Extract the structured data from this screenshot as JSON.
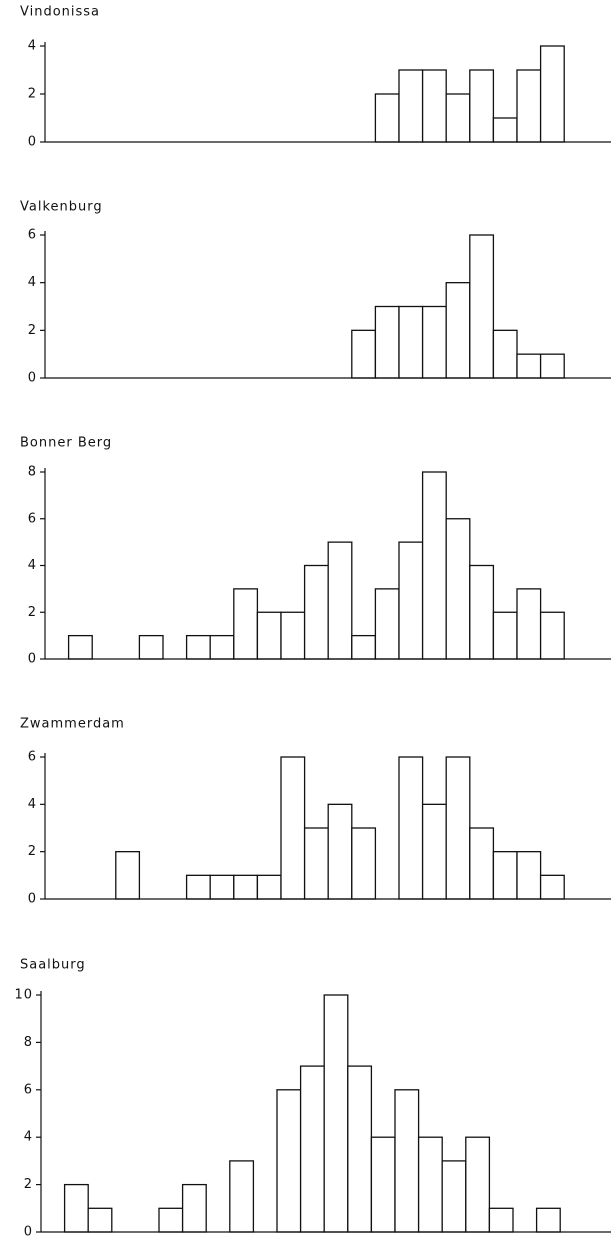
{
  "chart_data": [
    {
      "type": "bar",
      "title": "Vindonissa",
      "color": "#ffffff",
      "categories": [
        null,
        null,
        null,
        null,
        null,
        null,
        null,
        null,
        null,
        null,
        null,
        null,
        null,
        null,
        null,
        null,
        null,
        null,
        null,
        null,
        null,
        null,
        null,
        null
      ],
      "values": [
        0,
        0,
        0,
        0,
        0,
        0,
        0,
        0,
        0,
        0,
        0,
        0,
        0,
        0,
        2,
        3,
        3,
        2,
        3,
        1,
        3,
        4,
        0,
        0
      ],
      "ylim": [
        0,
        4
      ],
      "yticks": [
        0,
        2,
        4
      ]
    },
    {
      "type": "bar",
      "title": "Valkenburg",
      "color": "#ffffff",
      "categories": [
        null,
        null,
        null,
        null,
        null,
        null,
        null,
        null,
        null,
        null,
        null,
        null,
        null,
        null,
        null,
        null,
        null,
        null,
        null,
        null,
        null,
        null,
        null,
        null
      ],
      "values": [
        0,
        0,
        0,
        0,
        0,
        0,
        0,
        0,
        0,
        0,
        0,
        0,
        0,
        2,
        3,
        3,
        3,
        4,
        6,
        2,
        1,
        1,
        0,
        0
      ],
      "ylim": [
        0,
        6
      ],
      "yticks": [
        0,
        2,
        4,
        6
      ]
    },
    {
      "type": "bar",
      "title": "Bonner Berg",
      "color": "#ffffff",
      "categories": [
        null,
        null,
        null,
        null,
        null,
        null,
        null,
        null,
        null,
        null,
        null,
        null,
        null,
        null,
        null,
        null,
        null,
        null,
        null,
        null,
        null,
        null,
        null,
        null
      ],
      "values": [
        0,
        1,
        0,
        0,
        1,
        0,
        1,
        1,
        3,
        2,
        2,
        4,
        5,
        1,
        3,
        5,
        8,
        6,
        4,
        2,
        3,
        2,
        0,
        0
      ],
      "ylim": [
        0,
        8
      ],
      "yticks": [
        0,
        2,
        4,
        6,
        8
      ]
    },
    {
      "type": "bar",
      "title": "Zwammerdam",
      "color": "#ffffff",
      "categories": [
        null,
        null,
        null,
        null,
        null,
        null,
        null,
        null,
        null,
        null,
        null,
        null,
        null,
        null,
        null,
        null,
        null,
        null,
        null,
        null,
        null,
        null,
        null,
        null
      ],
      "values": [
        0,
        0,
        0,
        2,
        0,
        0,
        1,
        1,
        1,
        1,
        6,
        3,
        4,
        3,
        0,
        6,
        4,
        6,
        3,
        2,
        2,
        1,
        0,
        0
      ],
      "ylim": [
        0,
        6
      ],
      "yticks": [
        0,
        2,
        4,
        6
      ]
    },
    {
      "type": "bar",
      "title": "Saalburg",
      "color": "#ffffff",
      "categories": [
        null,
        null,
        null,
        null,
        null,
        null,
        null,
        null,
        null,
        null,
        null,
        null,
        null,
        null,
        null,
        null,
        null,
        null,
        null,
        null,
        null,
        null,
        null,
        null
      ],
      "values": [
        0,
        2,
        1,
        0,
        0,
        1,
        2,
        0,
        3,
        0,
        6,
        7,
        10,
        7,
        4,
        6,
        4,
        3,
        4,
        1,
        0,
        1,
        0,
        0
      ],
      "ylim": [
        0,
        10
      ],
      "yticks": [
        0,
        2,
        4,
        6,
        8,
        10
      ]
    }
  ]
}
